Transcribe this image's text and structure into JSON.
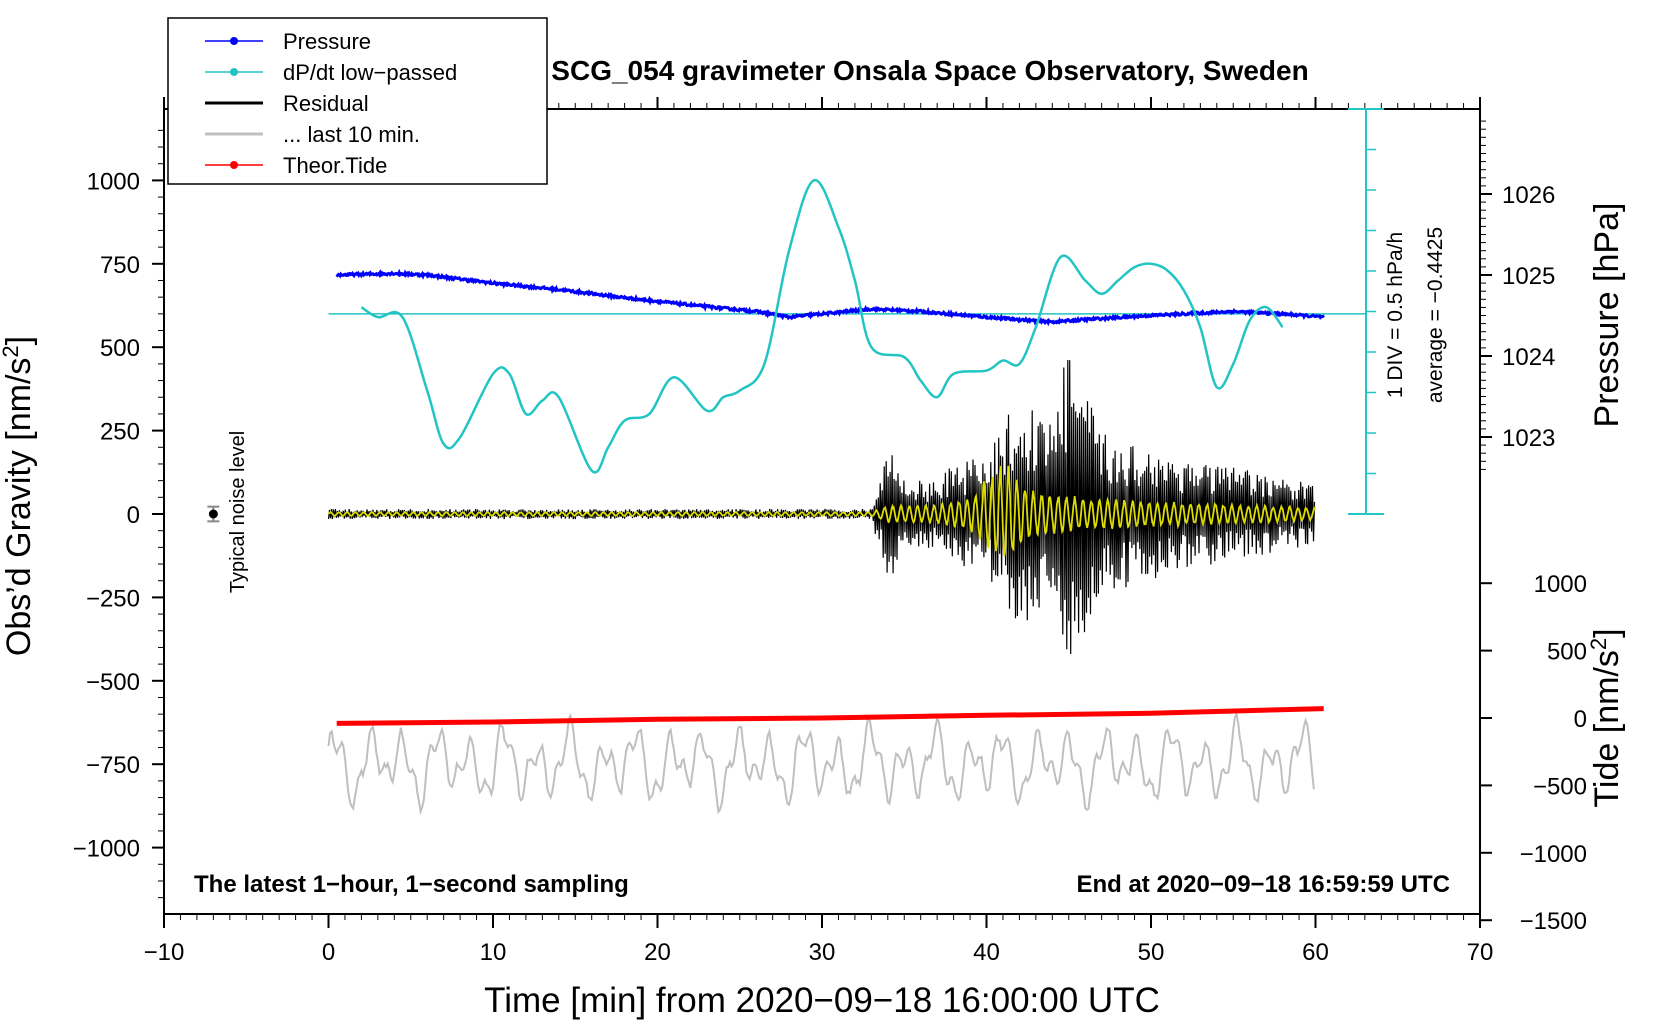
{
  "chart_data": {
    "type": "line",
    "title": "SCG_054 gravimeter Onsala Space Observatory, Sweden",
    "xlabel": "Time [min] from 2020−09−18 16:00:00 UTC",
    "xlim": [
      -10,
      70
    ],
    "x_ticks": [
      -10,
      0,
      10,
      20,
      30,
      40,
      50,
      60,
      70
    ],
    "x_tick_labels": [
      "−10",
      "0",
      "10",
      "20",
      "30",
      "40",
      "50",
      "60",
      "70"
    ],
    "left_axis": {
      "label_main": "Obs’d Gravity [nm/s",
      "label_sup": "2",
      "label_end": "]",
      "ylim": [
        -1200,
        1200
      ],
      "ticks": [
        1000,
        750,
        500,
        250,
        0,
        -250,
        -500,
        -750,
        -1000
      ],
      "tick_labels": [
        "1000",
        "750",
        "500",
        "250",
        "0",
        "−250",
        "−500",
        "−750",
        "−1000"
      ]
    },
    "pressure_axis": {
      "label": "Pressure [hPa]",
      "ticks": [
        1026,
        1025,
        1024,
        1023
      ],
      "tick_labels": [
        "1026",
        "1025",
        "1024",
        "1023"
      ]
    },
    "tide_axis": {
      "label_main": "Tide [nm/s",
      "label_sup": "2",
      "label_end": "]",
      "ticks": [
        1000,
        500,
        0,
        -500,
        -1000,
        -1500
      ],
      "tick_labels": [
        "1000",
        "500",
        "0",
        "−500",
        "−1000",
        "−1500"
      ]
    },
    "dpdt_scale": {
      "div_label": "1 DIV = 0.5 hPa/h",
      "average_label": "average = −0.4425"
    },
    "noise_label": "Typical noise level",
    "left_annotation": "The latest 1−hour, 1−second sampling",
    "right_annotation": "End at 2020−09−18 16:59:59 UTC",
    "legend": [
      {
        "label": "Pressure",
        "color": "#0000ff",
        "marker": true
      },
      {
        "label": "dP/dt low−passed",
        "color": "#22c4c4",
        "marker": true
      },
      {
        "label": "Residual",
        "color": "#000000",
        "marker": false
      },
      {
        "label": "... last 10 min.",
        "color": "#bfbfbf",
        "marker": false
      },
      {
        "label": "Theor.Tide",
        "color": "#ff0000",
        "marker": true
      }
    ],
    "series": [
      {
        "name": "Pressure",
        "units": "hPa",
        "color": "#0000ff",
        "points": [
          [
            0.5,
            1025.0
          ],
          [
            4,
            1025.02
          ],
          [
            6,
            1025.0
          ],
          [
            10,
            1024.9
          ],
          [
            14,
            1024.82
          ],
          [
            18,
            1024.72
          ],
          [
            22,
            1024.63
          ],
          [
            26,
            1024.55
          ],
          [
            28,
            1024.48
          ],
          [
            30,
            1024.52
          ],
          [
            33,
            1024.58
          ],
          [
            36,
            1024.55
          ],
          [
            40,
            1024.48
          ],
          [
            44,
            1024.42
          ],
          [
            46,
            1024.45
          ],
          [
            50,
            1024.5
          ],
          [
            53,
            1024.53
          ],
          [
            55,
            1024.55
          ],
          [
            58,
            1024.52
          ],
          [
            60.5,
            1024.48
          ]
        ]
      },
      {
        "name": "dP/dt low−passed",
        "units": "nm/s2 scale (1 DIV = 0.5 hPa/h)",
        "color": "#22c4c4",
        "baseline": 600,
        "points": [
          [
            2,
            620
          ],
          [
            3,
            590
          ],
          [
            4.5,
            590
          ],
          [
            6,
            370
          ],
          [
            7,
            210
          ],
          [
            8,
            230
          ],
          [
            10,
            420
          ],
          [
            11,
            420
          ],
          [
            12,
            300
          ],
          [
            13,
            340
          ],
          [
            14,
            350
          ],
          [
            16,
            130
          ],
          [
            17,
            200
          ],
          [
            18,
            280
          ],
          [
            19.5,
            300
          ],
          [
            21,
            410
          ],
          [
            23,
            310
          ],
          [
            24,
            350
          ],
          [
            25,
            370
          ],
          [
            26.5,
            450
          ],
          [
            28,
            790
          ],
          [
            29.5,
            1000
          ],
          [
            31,
            860
          ],
          [
            32,
            700
          ],
          [
            33,
            500
          ],
          [
            35,
            470
          ],
          [
            36,
            400
          ],
          [
            37,
            350
          ],
          [
            38,
            420
          ],
          [
            40,
            430
          ],
          [
            41,
            460
          ],
          [
            42,
            450
          ],
          [
            43,
            560
          ],
          [
            44.5,
            770
          ],
          [
            46,
            700
          ],
          [
            47,
            660
          ],
          [
            48,
            700
          ],
          [
            49,
            740
          ],
          [
            50,
            750
          ],
          [
            51,
            730
          ],
          [
            52,
            670
          ],
          [
            53,
            560
          ],
          [
            54,
            380
          ],
          [
            55,
            450
          ],
          [
            56,
            580
          ],
          [
            57,
            620
          ],
          [
            58,
            560
          ]
        ]
      },
      {
        "name": "Residual",
        "units": "nm/s2",
        "color": "#000000",
        "envelope": [
          [
            0,
            15
          ],
          [
            33,
            15
          ],
          [
            34,
            210
          ],
          [
            35,
            110
          ],
          [
            37,
            100
          ],
          [
            38,
            150
          ],
          [
            39,
            170
          ],
          [
            40,
            160
          ],
          [
            41,
            300
          ],
          [
            42,
            320
          ],
          [
            43,
            330
          ],
          [
            44,
            310
          ],
          [
            45,
            520
          ],
          [
            46,
            380
          ],
          [
            47,
            240
          ],
          [
            48,
            230
          ],
          [
            50,
            200
          ],
          [
            53,
            160
          ],
          [
            56,
            130
          ],
          [
            60,
            90
          ]
        ]
      },
      {
        "name": "Residual filtered",
        "units": "nm/s2",
        "color": "#dcdc00",
        "envelope": [
          [
            0,
            6
          ],
          [
            33,
            6
          ],
          [
            34,
            25
          ],
          [
            37,
            30
          ],
          [
            39,
            50
          ],
          [
            41,
            170
          ],
          [
            42,
            110
          ],
          [
            43,
            70
          ],
          [
            46,
            50
          ],
          [
            50,
            40
          ],
          [
            55,
            30
          ],
          [
            60,
            20
          ]
        ]
      },
      {
        "name": "... last 10 min.",
        "units": "nm/s2 (offset)",
        "color": "#bfbfbf",
        "baseline": -750,
        "amplitude": 130
      },
      {
        "name": "Theor.Tide",
        "units": "nm/s2",
        "color": "#ff0000",
        "points": [
          [
            0.5,
            -40
          ],
          [
            10,
            -30
          ],
          [
            20,
            -10
          ],
          [
            30,
            0
          ],
          [
            40,
            20
          ],
          [
            50,
            35
          ],
          [
            60.5,
            70
          ]
        ]
      }
    ]
  }
}
